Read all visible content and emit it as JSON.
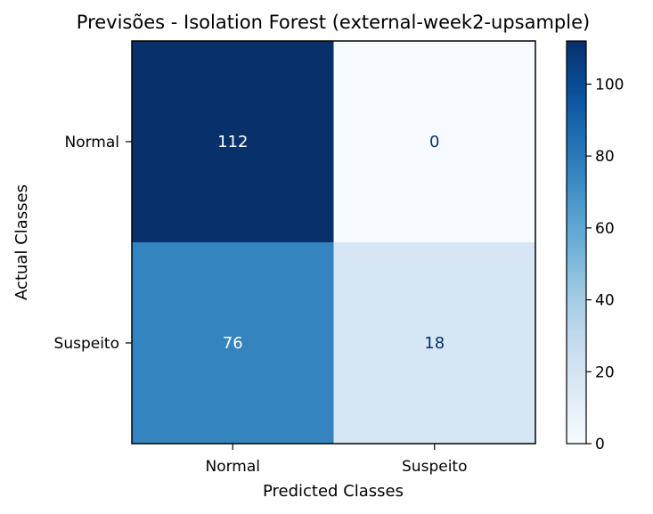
{
  "chart_data": {
    "type": "heatmap",
    "title": "Previsões - Isolation Forest (external-week2-upsample)",
    "xlabel": "Predicted Classes",
    "ylabel": "Actual Classes",
    "x_categories": [
      "Normal",
      "Suspeito"
    ],
    "y_categories": [
      "Normal",
      "Suspeito"
    ],
    "matrix": [
      [
        112,
        0
      ],
      [
        76,
        18
      ]
    ],
    "colormap": "Blues",
    "colorbar": {
      "range": [
        0,
        112
      ],
      "ticks": [
        0,
        20,
        40,
        60,
        80,
        100
      ]
    },
    "grid": false
  }
}
